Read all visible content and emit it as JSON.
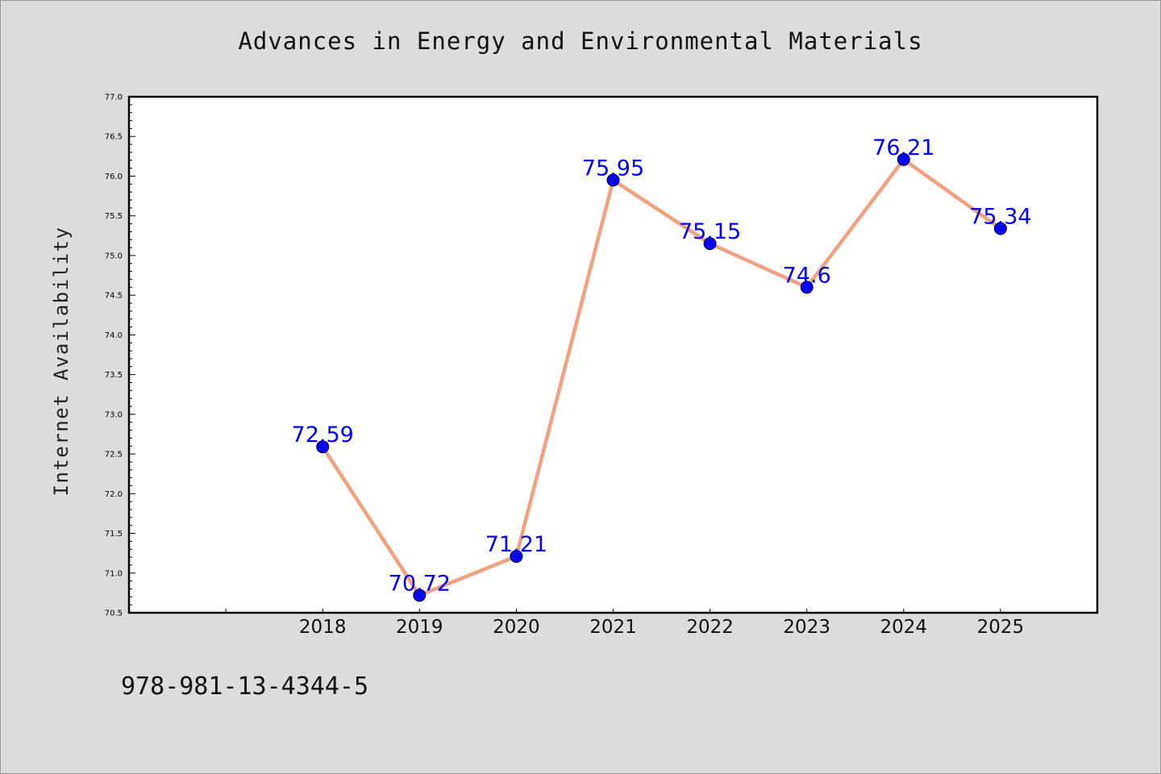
{
  "page": {
    "title": "Advances in Energy and Environmental Materials",
    "footer_code": "978-981-13-4344-5"
  },
  "colors": {
    "background": "#dcdcdc",
    "plot_area": "#ffffff",
    "line": "#f4a07e",
    "marker": "#0000ff",
    "label": "#0000ff"
  },
  "chart_data": {
    "type": "line",
    "title": "Advances in Energy and Environmental Materials",
    "xlabel": "",
    "ylabel": "Internet Availability",
    "categories": [
      "2018",
      "2019",
      "2020",
      "2021",
      "2022",
      "2023",
      "2024",
      "2025"
    ],
    "series": [
      {
        "values": [
          72.59,
          70.72,
          71.21,
          75.95,
          75.15,
          74.6,
          76.21,
          75.34
        ],
        "data_labels": [
          "72.59",
          "70.72",
          "71.21",
          "75.95",
          "75.15",
          "74.6",
          "76.21",
          "75.34"
        ]
      }
    ],
    "ylim": [
      70.5,
      77.0
    ],
    "yticks": [
      "70.5",
      "71.0",
      "71.5",
      "72.0",
      "72.5",
      "73.0",
      "73.5",
      "74.0",
      "74.5",
      "75.0",
      "75.5",
      "76.0",
      "76.5",
      "77.0"
    ],
    "xlim": [
      2016,
      2026
    ],
    "grid": false,
    "legend": "none"
  }
}
